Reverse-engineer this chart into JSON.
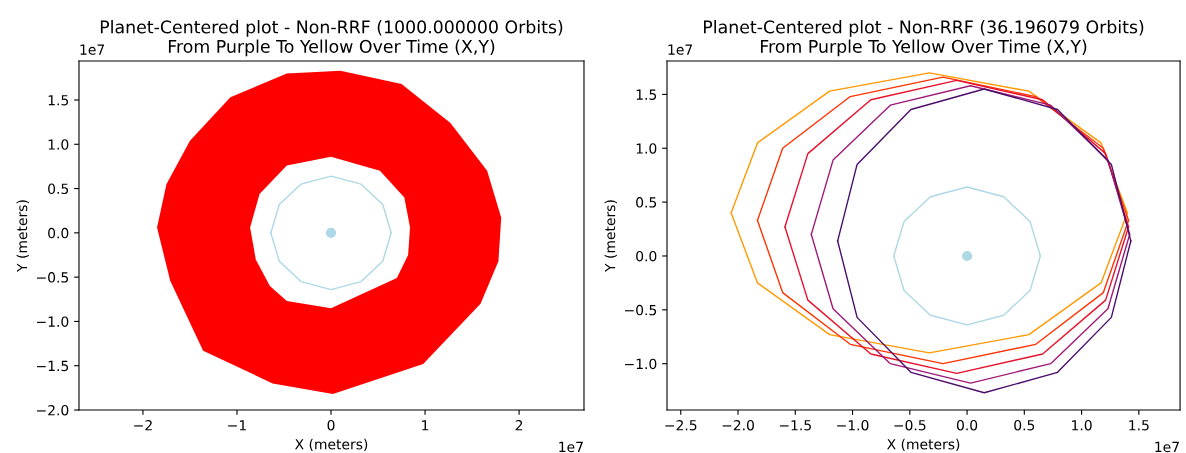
{
  "chart_data": [
    {
      "type": "line",
      "title": "Planet-Centered plot - Non-RRF (1000.000000 Orbits)\nFrom Purple To Yellow Over Time (X,Y)",
      "xlabel": "X (meters)",
      "ylabel": "Y (meters)",
      "annotations": [
        "1e7",
        "1e7"
      ],
      "xlim": [
        -2.68,
        2.69
      ],
      "ylim": [
        -2.0,
        1.94
      ],
      "xticks": [
        {
          "value": -2,
          "label": "−2"
        },
        {
          "value": -1,
          "label": "−1"
        },
        {
          "value": 0,
          "label": "0"
        },
        {
          "value": 1,
          "label": "1"
        },
        {
          "value": 2,
          "label": "2"
        }
      ],
      "yticks": [
        {
          "value": -2.0,
          "label": "−2.0"
        },
        {
          "value": -1.5,
          "label": "−1.5"
        },
        {
          "value": -1.0,
          "label": "−1.0"
        },
        {
          "value": -0.5,
          "label": "−0.5"
        },
        {
          "value": 0.0,
          "label": "0.0"
        },
        {
          "value": 0.5,
          "label": "0.5"
        },
        {
          "value": 1.0,
          "label": "1.0"
        },
        {
          "value": 1.5,
          "label": "1.5"
        }
      ],
      "grid": false,
      "legend": false,
      "series": [
        {
          "type": "area",
          "color": "#ff0000",
          "x": [
            1.81,
            1.66,
            1.27,
            0.75,
            0.1,
            -0.47,
            -1.07,
            -1.5,
            -1.75,
            -1.85,
            -1.71,
            -1.36,
            -0.62,
            0.02,
            0.98,
            1.59,
            1.78,
            1.81
          ],
          "values": [
            0.17,
            0.7,
            1.24,
            1.68,
            1.83,
            1.8,
            1.53,
            1.04,
            0.55,
            0.06,
            -0.54,
            -1.33,
            -1.7,
            -1.82,
            -1.48,
            -0.8,
            -0.32,
            0.17
          ]
        },
        {
          "type": "area",
          "color": "#ffffff",
          "x": [
            0.84,
            0.78,
            0.52,
            0.0,
            -0.47,
            -0.76,
            -0.86,
            -0.8,
            -0.65,
            -0.47,
            0.0,
            0.7,
            0.82,
            0.84
          ],
          "values": [
            0.06,
            0.4,
            0.7,
            0.86,
            0.76,
            0.44,
            0.06,
            -0.3,
            -0.6,
            -0.77,
            -0.85,
            -0.51,
            -0.25,
            0.06
          ]
        },
        {
          "type": "line",
          "color": "#add8e6",
          "x": [
            0.64,
            0.55,
            0.32,
            0,
            -0.32,
            -0.55,
            -0.64
          ],
          "values": [
            0,
            0.32,
            0.55,
            0.64,
            0.55,
            0.32,
            0
          ]
        },
        {
          "type": "line",
          "color": "#add8e6",
          "x": [
            -0.64,
            -0.55,
            -0.32,
            0,
            0.32,
            0.55,
            0.64
          ],
          "values": [
            0,
            -0.32,
            -0.55,
            -0.64,
            -0.55,
            -0.32,
            0
          ]
        },
        {
          "type": "scatter",
          "color": "#add8e6",
          "marker": "circle",
          "x": [
            0
          ],
          "values": [
            0
          ]
        }
      ]
    },
    {
      "type": "line",
      "title": "Planet-Centered plot - Non-RRF (36.196079 Orbits)\nFrom Purple To Yellow Over Time (X,Y)",
      "xlabel": "X (meters)",
      "ylabel": "Y (meters)",
      "annotations": [
        "1e7",
        "1e7"
      ],
      "xlim": [
        -2.62,
        1.86
      ],
      "ylim": [
        -1.43,
        1.81
      ],
      "xticks": [
        {
          "value": -2.5,
          "label": "−2.5"
        },
        {
          "value": -2.0,
          "label": "−2.0"
        },
        {
          "value": -1.5,
          "label": "−1.5"
        },
        {
          "value": -1.0,
          "label": "−1.0"
        },
        {
          "value": -0.5,
          "label": "−0.5"
        },
        {
          "value": 0.0,
          "label": "0.0"
        },
        {
          "value": 0.5,
          "label": "0.5"
        },
        {
          "value": 1.0,
          "label": "1.0"
        },
        {
          "value": 1.5,
          "label": "1.5"
        }
      ],
      "yticks": [
        {
          "value": -1.0,
          "label": "−1.0"
        },
        {
          "value": -0.5,
          "label": "−0.5"
        },
        {
          "value": 0.0,
          "label": "0.0"
        },
        {
          "value": 0.5,
          "label": "0.5"
        },
        {
          "value": 1.0,
          "label": "1.0"
        },
        {
          "value": 1.5,
          "label": "1.5"
        }
      ],
      "grid": false,
      "legend": false,
      "series": [
        {
          "type": "line",
          "color": "#ff9900",
          "x": [
            1.4,
            1.17,
            0.54,
            -0.33,
            -1.2,
            -1.83,
            -2.06
          ],
          "values": [
            0.4,
            1.05,
            1.53,
            1.7,
            1.53,
            1.05,
            0.4
          ]
        },
        {
          "type": "line",
          "color": "#ff9900",
          "x": [
            -2.06,
            -1.83,
            -1.2,
            -0.33,
            0.54,
            1.17,
            1.4
          ],
          "values": [
            0.4,
            -0.25,
            -0.73,
            -0.9,
            -0.73,
            -0.25,
            0.4
          ]
        },
        {
          "type": "line",
          "color": "#ff3300",
          "x": [
            1.41,
            1.19,
            0.6,
            -0.21,
            -1.02,
            -1.61,
            -1.83
          ],
          "values": [
            0.33,
            1.0,
            1.48,
            1.66,
            1.48,
            1.0,
            0.33
          ]
        },
        {
          "type": "line",
          "color": "#ff3300",
          "x": [
            -1.83,
            -1.61,
            -1.02,
            -0.21,
            0.6,
            1.19,
            1.41
          ],
          "values": [
            0.33,
            -0.34,
            -0.82,
            -1.0,
            -0.82,
            -0.34,
            0.33
          ]
        },
        {
          "type": "line",
          "color": "#e8102a",
          "x": [
            1.41,
            1.21,
            0.66,
            -0.09,
            -0.84,
            -1.39,
            -1.59
          ],
          "values": [
            0.27,
            0.95,
            1.45,
            1.63,
            1.45,
            0.95,
            0.27
          ]
        },
        {
          "type": "line",
          "color": "#e8102a",
          "x": [
            -1.59,
            -1.39,
            -0.84,
            -0.09,
            0.66,
            1.21,
            1.41
          ],
          "values": [
            0.27,
            -0.41,
            -0.91,
            -1.09,
            -0.91,
            -0.41,
            0.27
          ]
        },
        {
          "type": "line",
          "color": "#a01878",
          "x": [
            1.42,
            1.23,
            0.73,
            0.03,
            -0.67,
            -1.17,
            -1.36
          ],
          "values": [
            0.2,
            0.89,
            1.4,
            1.58,
            1.4,
            0.89,
            0.2
          ]
        },
        {
          "type": "line",
          "color": "#a01878",
          "x": [
            -1.36,
            -1.17,
            -0.67,
            0.03,
            0.73,
            1.23,
            1.42
          ],
          "values": [
            0.2,
            -0.49,
            -1.0,
            -1.18,
            -1.0,
            -0.49,
            0.2
          ]
        },
        {
          "type": "line",
          "color": "#4b0c6b",
          "x": [
            1.43,
            1.26,
            0.79,
            0.15,
            -0.49,
            -0.96,
            -1.13
          ],
          "values": [
            0.14,
            0.85,
            1.36,
            1.55,
            1.36,
            0.85,
            0.14
          ]
        },
        {
          "type": "line",
          "color": "#4b0c6b",
          "x": [
            -1.13,
            -0.96,
            -0.49,
            0.15,
            0.79,
            1.26,
            1.43
          ],
          "values": [
            0.14,
            -0.57,
            -1.08,
            -1.27,
            -1.08,
            -0.57,
            0.14
          ]
        },
        {
          "type": "line",
          "color": "#add8e6",
          "x": [
            0.64,
            0.55,
            0.32,
            0,
            -0.32,
            -0.55,
            -0.64
          ],
          "values": [
            0,
            0.32,
            0.55,
            0.64,
            0.55,
            0.32,
            0
          ]
        },
        {
          "type": "line",
          "color": "#add8e6",
          "x": [
            -0.64,
            -0.55,
            -0.32,
            0,
            0.32,
            0.55,
            0.64
          ],
          "values": [
            0,
            -0.32,
            -0.55,
            -0.64,
            -0.55,
            -0.32,
            0
          ]
        },
        {
          "type": "scatter",
          "color": "#add8e6",
          "marker": "circle",
          "x": [
            0
          ],
          "values": [
            0
          ]
        }
      ]
    }
  ]
}
